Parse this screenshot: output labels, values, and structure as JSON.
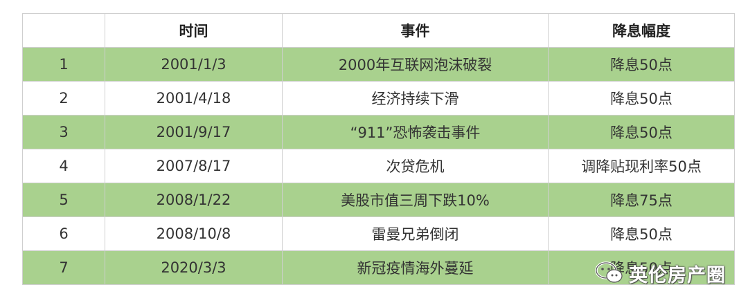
{
  "table": {
    "headers": [
      "",
      "时间",
      "事件",
      "降息幅度"
    ],
    "rows": [
      [
        "1",
        "2001/1/3",
        "2000年互联网泡沫破裂",
        "降息50点"
      ],
      [
        "2",
        "2001/4/18",
        "经济持续下滑",
        "降息50点"
      ],
      [
        "3",
        "2001/9/17",
        "“911”恐怖袭击事件",
        "降息50点"
      ],
      [
        "4",
        "2007/8/17",
        "次贷危机",
        "调降贴现利率50点"
      ],
      [
        "5",
        "2008/1/22",
        "美股市值三周下跌10%",
        "降息75点"
      ],
      [
        "6",
        "2008/10/8",
        "雷曼兄弟倒闭",
        "降息50点"
      ],
      [
        "7",
        "2020/3/3",
        "新冠疫情海外蔓延",
        "降息50点"
      ]
    ]
  },
  "watermark": {
    "icon": "wechat-icon",
    "text": "英伦房产圈"
  },
  "colors": {
    "green_row": "#a9d18e",
    "border": "#cfcfcf",
    "text": "#333333"
  }
}
